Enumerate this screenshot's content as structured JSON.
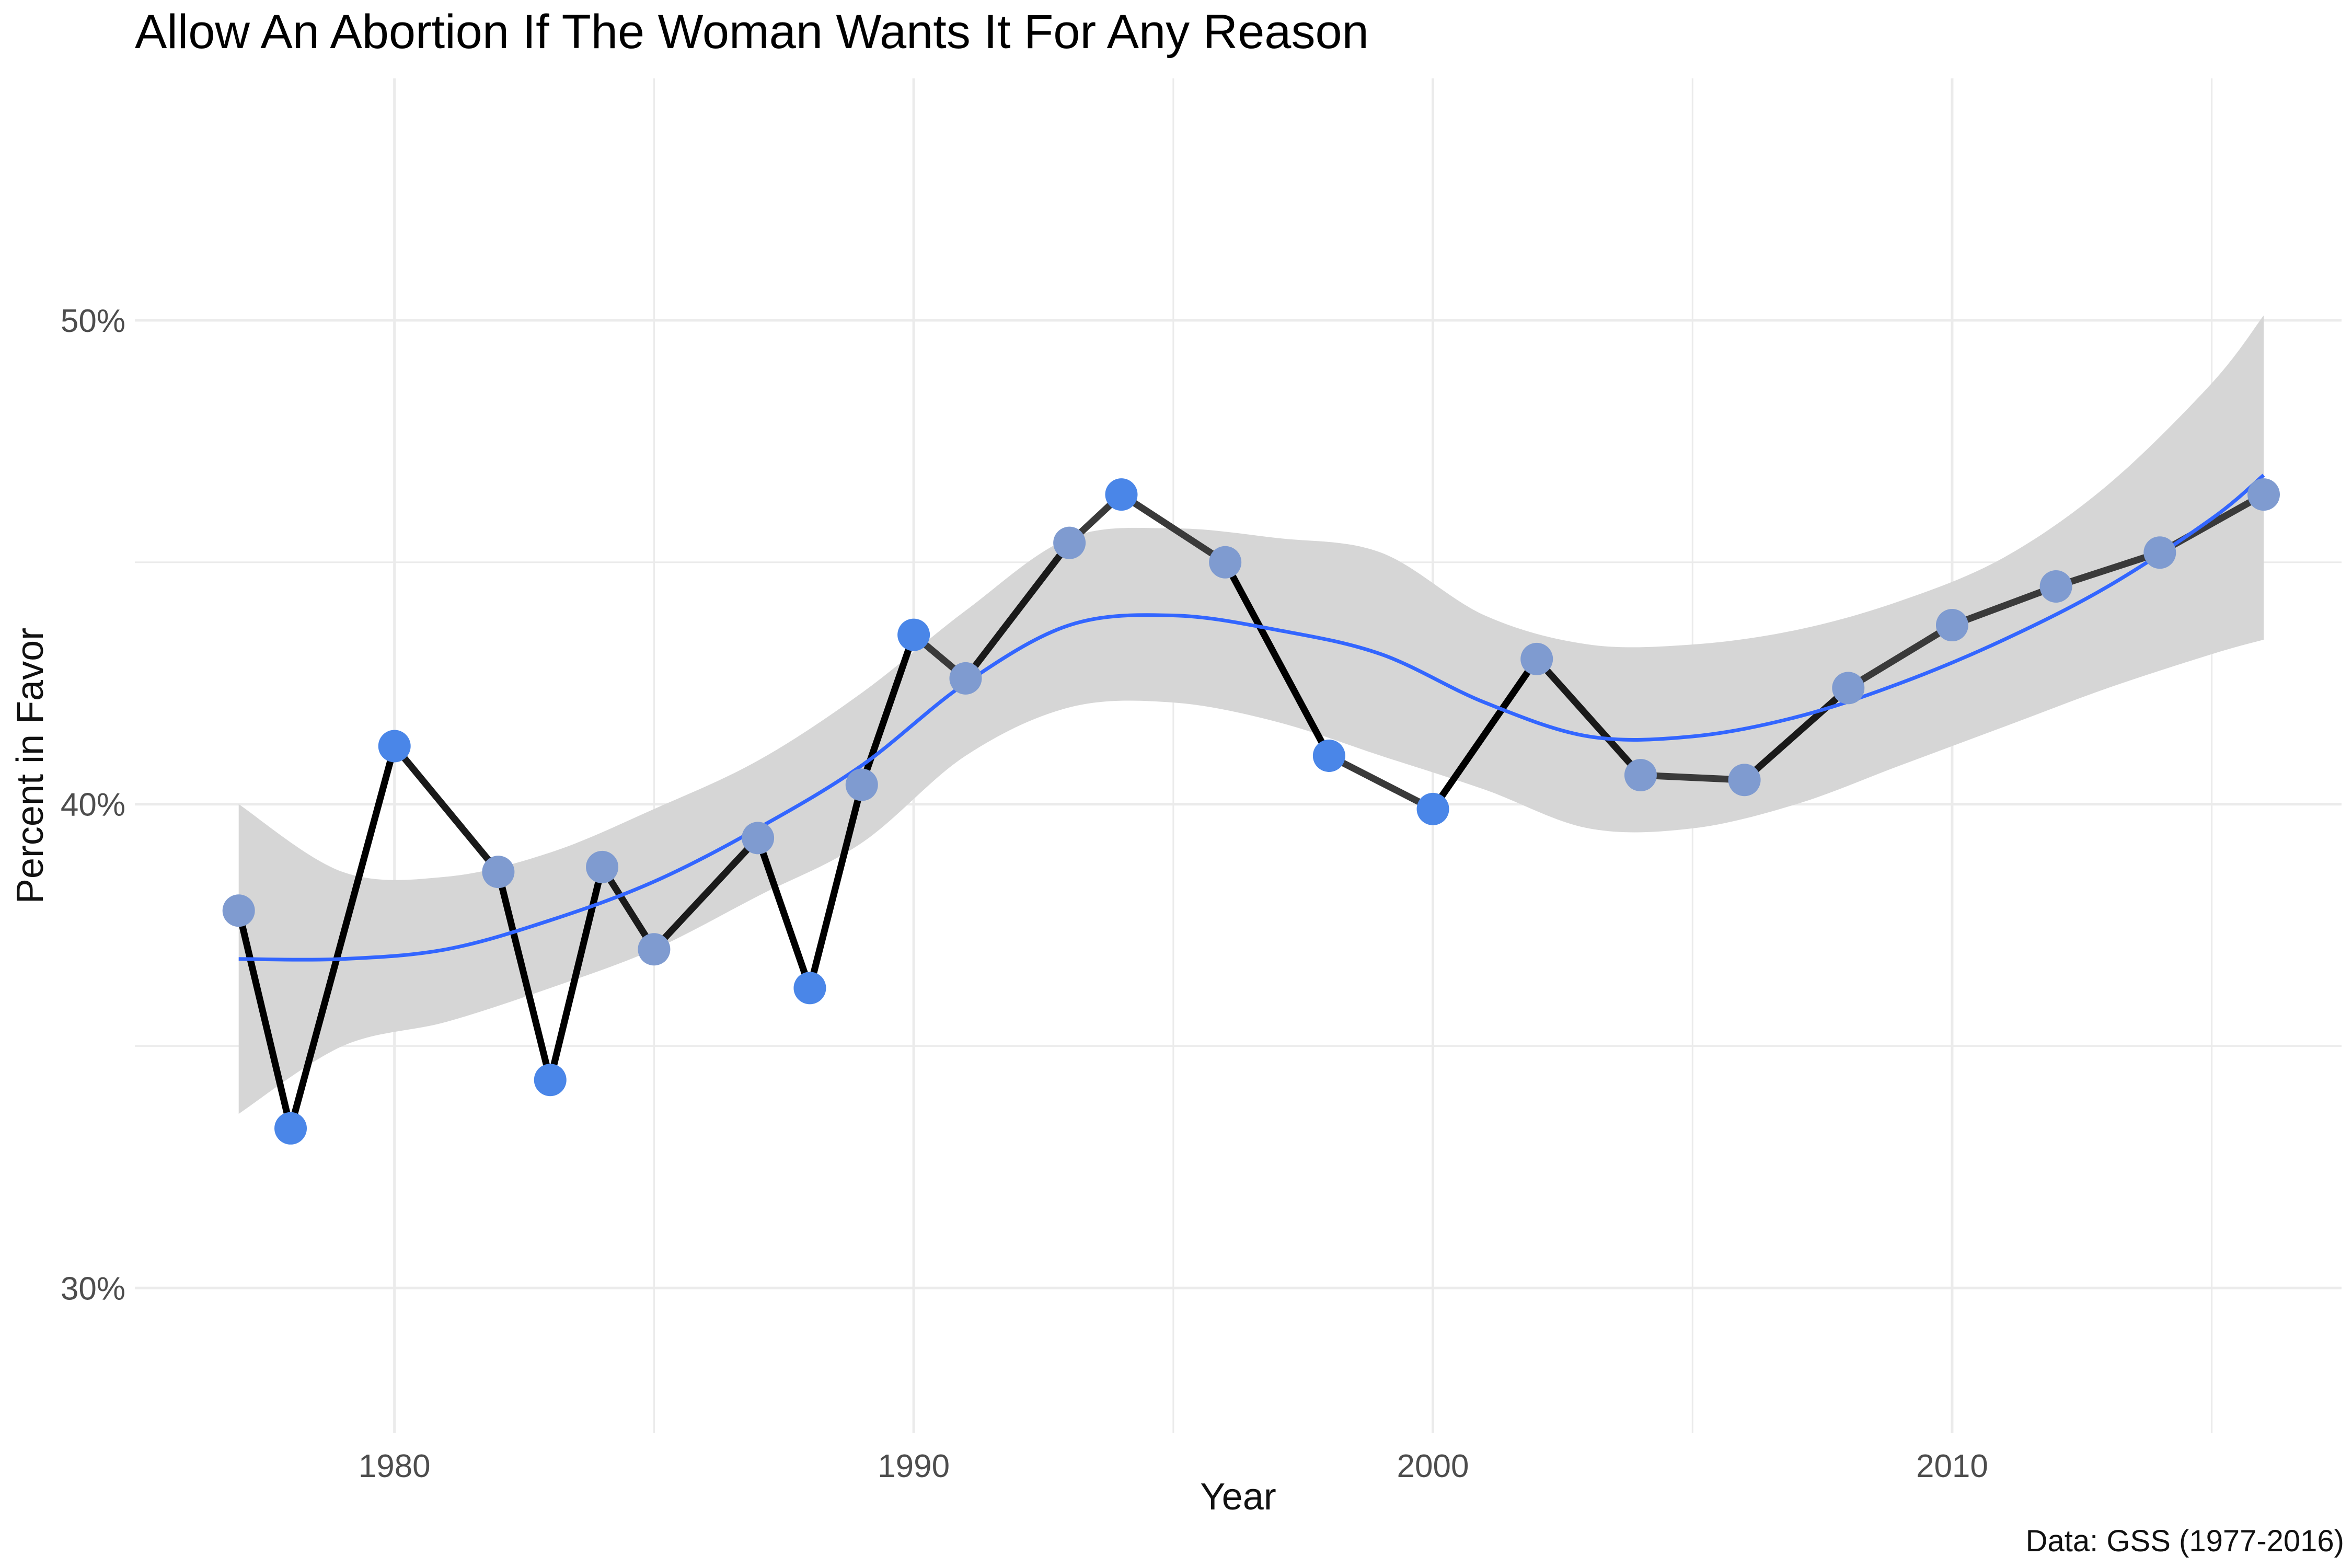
{
  "chart_data": {
    "type": "line",
    "title": "Allow An Abortion If The Woman Wants It For Any Reason",
    "xlabel": "Year",
    "ylabel": "Percent in Favor",
    "caption": "Data: GSS (1977-2016)",
    "xlim": [
      1975,
      2017.5
    ],
    "ylim": [
      27,
      55
    ],
    "x_ticks": [
      1980,
      1990,
      2000,
      2010
    ],
    "x_tick_labels": [
      "1980",
      "1990",
      "2000",
      "2010"
    ],
    "y_ticks": [
      30,
      40,
      50
    ],
    "y_tick_labels": [
      "30%",
      "40%",
      "50%"
    ],
    "grid": true,
    "legend": "none",
    "colors": {
      "line": "#000000",
      "point": "#4a86e8",
      "smooth": "#3366ff",
      "ribbon": "#d6d6d6",
      "grid": "#ebebeb"
    },
    "series": [
      {
        "values_x": [
          1977,
          1978,
          1980,
          1982,
          1983,
          1984,
          1985,
          1987,
          1988,
          1989,
          1990,
          1991,
          1993,
          1994,
          1996,
          1998,
          2000,
          2002,
          2004,
          2006,
          2008,
          2010,
          2012,
          2014,
          2016
        ],
        "values_y": [
          37.8,
          33.3,
          41.2,
          38.6,
          34.3,
          38.7,
          37.0,
          39.3,
          36.2,
          40.4,
          43.5,
          42.6,
          45.4,
          46.4,
          45.0,
          41.0,
          39.9,
          43.0,
          40.6,
          40.5,
          42.4,
          43.7,
          44.5,
          45.2,
          46.4
        ]
      }
    ],
    "smooth": {
      "x": [
        1977,
        1979,
        1981,
        1983,
        1985,
        1987,
        1989,
        1991,
        1993,
        1995,
        1997,
        1999,
        2001,
        2003,
        2005,
        2007,
        2009,
        2011,
        2013,
        2015,
        2016
      ],
      "y": [
        36.8,
        36.8,
        37.0,
        37.6,
        38.4,
        39.5,
        40.8,
        42.5,
        43.7,
        43.9,
        43.6,
        43.1,
        42.1,
        41.4,
        41.4,
        41.8,
        42.5,
        43.4,
        44.5,
        45.9,
        46.8
      ],
      "lower": [
        33.6,
        35.0,
        35.5,
        36.2,
        37.0,
        38.1,
        39.2,
        41.0,
        42.0,
        42.1,
        41.7,
        41.0,
        40.3,
        39.5,
        39.5,
        40.0,
        40.8,
        41.6,
        42.4,
        43.1,
        43.4
      ],
      "upper": [
        40.0,
        38.6,
        38.5,
        39.0,
        39.9,
        40.9,
        42.3,
        44.0,
        45.5,
        45.7,
        45.5,
        45.2,
        43.9,
        43.3,
        43.3,
        43.6,
        44.2,
        45.1,
        46.6,
        48.7,
        50.1
      ]
    }
  }
}
